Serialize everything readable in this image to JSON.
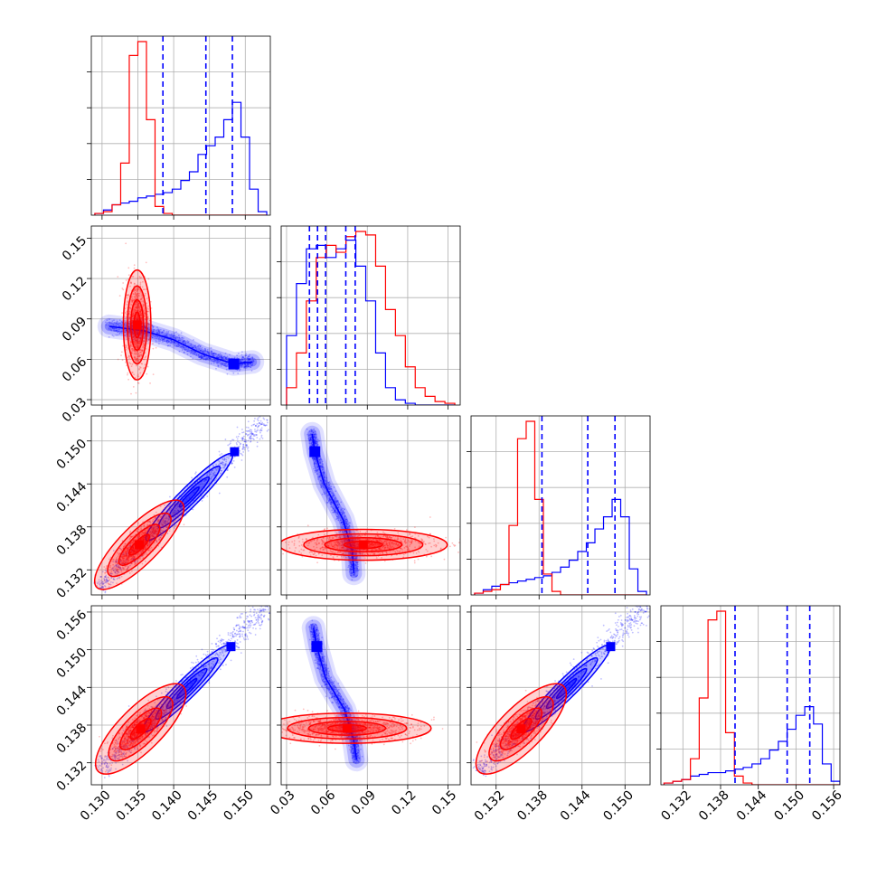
{
  "chart_data": {
    "type": "corner",
    "grid": true,
    "colors": {
      "series_a": "#ff0000",
      "series_b": "#0000ff"
    },
    "parameters": [
      {
        "range": [
          0.1285,
          0.1535
        ],
        "ticks": [
          "0.130",
          "0.135",
          "0.140",
          "0.145",
          "0.150"
        ]
      },
      {
        "range": [
          0.026,
          0.159
        ],
        "ticks": [
          "0.03",
          "0.06",
          "0.09",
          "0.12",
          "0.15"
        ]
      },
      {
        "range": [
          0.1285,
          0.1535
        ],
        "ticks": [
          "0.132",
          "0.138",
          "0.144",
          "0.150"
        ]
      },
      {
        "range": [
          0.1285,
          0.157
        ],
        "ticks": [
          "0.132",
          "0.138",
          "0.144",
          "0.150",
          "0.156"
        ]
      }
    ],
    "histograms": [
      {
        "param": 0,
        "bins_lo": 0.129,
        "bins_hi": 0.153,
        "series_a": [
          0.01,
          0.02,
          0.06,
          0.3,
          0.92,
          1.0,
          0.55,
          0.05,
          0.01,
          0,
          0,
          0,
          0,
          0,
          0,
          0,
          0,
          0,
          0,
          0
        ],
        "series_b": [
          0.01,
          0.03,
          0.06,
          0.07,
          0.08,
          0.1,
          0.11,
          0.12,
          0.13,
          0.15,
          0.2,
          0.25,
          0.35,
          0.4,
          0.45,
          0.55,
          0.65,
          0.45,
          0.15,
          0.02
        ],
        "quantiles_b": [
          0.1385,
          0.1445,
          0.1482
        ]
      },
      {
        "param": 1,
        "bins_lo": 0.03,
        "bins_hi": 0.155,
        "series_a": [
          0.1,
          0.3,
          0.6,
          0.85,
          0.92,
          0.88,
          0.97,
          1.0,
          0.98,
          0.8,
          0.55,
          0.4,
          0.22,
          0.1,
          0.05,
          0.02,
          0.01
        ],
        "series_b": [
          0.4,
          0.7,
          0.9,
          0.92,
          0.85,
          0.9,
          0.95,
          0.8,
          0.6,
          0.3,
          0.1,
          0.03,
          0.01,
          0,
          0,
          0,
          0
        ],
        "quantiles_b": [
          0.047,
          0.053,
          0.059,
          0.074,
          0.081
        ]
      },
      {
        "param": 2,
        "bins_lo": 0.129,
        "bins_hi": 0.153,
        "series_a": [
          0.01,
          0.02,
          0.03,
          0.06,
          0.4,
          0.9,
          1.0,
          0.55,
          0.12,
          0.02,
          0,
          0,
          0,
          0,
          0,
          0,
          0,
          0,
          0,
          0
        ],
        "series_b": [
          0.01,
          0.03,
          0.05,
          0.06,
          0.07,
          0.08,
          0.09,
          0.1,
          0.11,
          0.13,
          0.16,
          0.2,
          0.25,
          0.3,
          0.38,
          0.45,
          0.55,
          0.45,
          0.15,
          0.02
        ],
        "quantiles_b": [
          0.1384,
          0.1448,
          0.1486
        ]
      },
      {
        "param": 3,
        "bins_lo": 0.129,
        "bins_hi": 0.157,
        "series_a": [
          0.01,
          0.02,
          0.03,
          0.15,
          0.5,
          0.95,
          1.0,
          0.3,
          0.05,
          0.01,
          0,
          0,
          0,
          0,
          0,
          0,
          0,
          0,
          0,
          0
        ],
        "series_b": [
          0.01,
          0.02,
          0.03,
          0.05,
          0.06,
          0.07,
          0.07,
          0.08,
          0.09,
          0.1,
          0.12,
          0.15,
          0.2,
          0.25,
          0.32,
          0.4,
          0.45,
          0.35,
          0.12,
          0.02
        ],
        "quantiles_b": [
          0.1403,
          0.1486,
          0.1522
        ]
      }
    ],
    "pairs": [
      {
        "x_param": 0,
        "y_param": 1,
        "series_a": {
          "center": [
            0.1349,
            0.0855
          ],
          "sigma": [
            0.0008,
            0.017
          ],
          "shape": "ellipse"
        },
        "series_b": {
          "peak": [
            0.1484,
            0.0565
          ],
          "path": [
            [
              0.131,
              0.0845
            ],
            [
              0.136,
              0.081
            ],
            [
              0.14,
              0.0745
            ],
            [
              0.144,
              0.064
            ],
            [
              0.1484,
              0.0565
            ],
            [
              0.151,
              0.058
            ]
          ],
          "width": 0.009
        }
      },
      {
        "x_param": 0,
        "y_param": 2,
        "series_a": {
          "center": [
            0.1352,
            0.1355
          ],
          "along": 0.0025,
          "perp": 0.0008
        },
        "series_b": {
          "line": [
            [
              0.1295,
              0.1295
            ],
            [
              0.153,
              0.153
            ]
          ],
          "peak": [
            0.1485,
            0.1485
          ],
          "width": 0.0007
        }
      },
      {
        "x_param": 1,
        "y_param": 2,
        "series_a": {
          "center": [
            0.087,
            0.1355
          ],
          "sigma": [
            0.026,
            0.0009
          ],
          "shape": "ellipse"
        },
        "series_b": {
          "peak": [
            0.051,
            0.1485
          ],
          "path": [
            [
              0.049,
              0.151
            ],
            [
              0.051,
              0.1485
            ],
            [
              0.058,
              0.144
            ],
            [
              0.072,
              0.139
            ],
            [
              0.079,
              0.1345
            ],
            [
              0.08,
              0.1315
            ]
          ],
          "width": 0.006
        }
      },
      {
        "x_param": 0,
        "y_param": 3,
        "series_a": {
          "center": [
            0.1354,
            0.1374
          ],
          "along": 0.0025,
          "perp": 0.0009
        },
        "series_b": {
          "line": [
            [
              0.1295,
              0.1305
            ],
            [
              0.153,
              0.157
            ]
          ],
          "peak": [
            0.148,
            0.1505
          ],
          "width": 0.0008
        }
      },
      {
        "x_param": 1,
        "y_param": 3,
        "series_a": {
          "center": [
            0.075,
            0.1375
          ],
          "sigma": [
            0.026,
            0.001
          ],
          "shape": "ellipse"
        },
        "series_b": {
          "peak": [
            0.0525,
            0.1505
          ],
          "path": [
            [
              0.05,
              0.1535
            ],
            [
              0.0525,
              0.1505
            ],
            [
              0.059,
              0.1455
            ],
            [
              0.073,
              0.1405
            ],
            [
              0.08,
              0.1355
            ],
            [
              0.082,
              0.1325
            ]
          ],
          "width": 0.006
        }
      },
      {
        "x_param": 2,
        "y_param": 3,
        "series_a": {
          "center": [
            0.1355,
            0.1374
          ],
          "along": 0.0025,
          "perp": 0.0009
        },
        "series_b": {
          "line": [
            [
              0.1295,
              0.1305
            ],
            [
              0.153,
              0.157
            ]
          ],
          "peak": [
            0.148,
            0.1505
          ],
          "width": 0.0008
        }
      }
    ]
  }
}
